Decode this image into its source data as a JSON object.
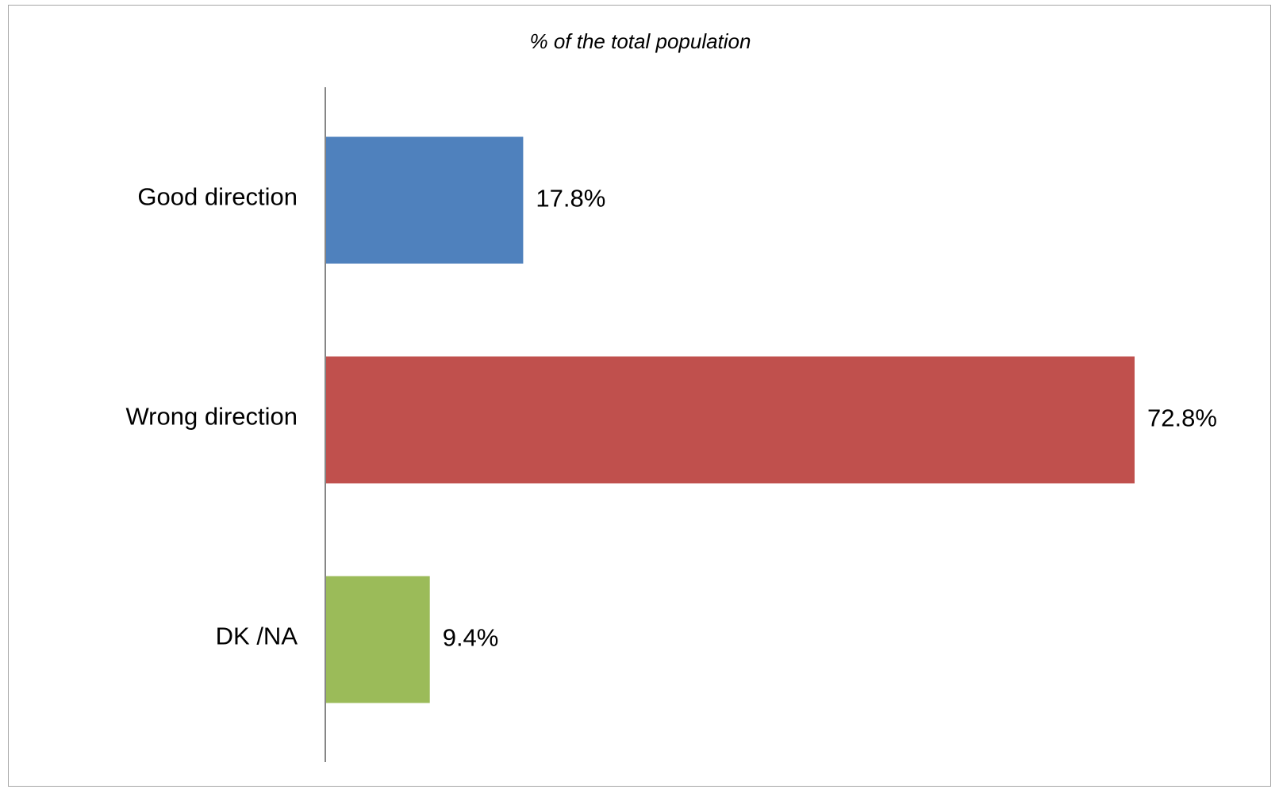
{
  "chart_data": {
    "type": "bar",
    "orientation": "horizontal",
    "title": "% of the total population",
    "categories": [
      "Good direction",
      "Wrong direction",
      "DK /NA"
    ],
    "values": [
      17.8,
      72.8,
      9.4
    ],
    "value_labels": [
      "17.8%",
      "72.8%",
      "9.4%"
    ],
    "colors": [
      "#4f81bd",
      "#c0504d",
      "#9bbb59"
    ],
    "axis_color": "#868686",
    "xlim": [
      0,
      80
    ],
    "grid": false,
    "legend": "none"
  }
}
